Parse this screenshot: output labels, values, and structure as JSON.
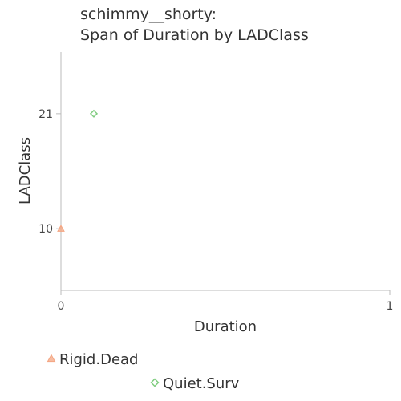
{
  "chart_data": {
    "type": "scatter",
    "title_line1": "schimmy__shorty:",
    "title_line2": "Span of Duration by LADClass",
    "xlabel": "Duration",
    "ylabel": "LADClass",
    "xlim": [
      0,
      1
    ],
    "ylim": [
      4.1,
      26.9
    ],
    "x_ticks": [
      0,
      1
    ],
    "y_ticks": [
      10,
      21
    ],
    "grid": false,
    "legend_position": "bottom",
    "series": [
      {
        "name": "Rigid.Dead",
        "marker": "triangle",
        "color": "#f4a582",
        "points": [
          {
            "x": 0,
            "y": 10
          }
        ]
      },
      {
        "name": "Quiet.Surv",
        "marker": "diamond",
        "color": "#7fcc7f",
        "points": [
          {
            "x": 0.1,
            "y": 21
          }
        ]
      }
    ]
  }
}
